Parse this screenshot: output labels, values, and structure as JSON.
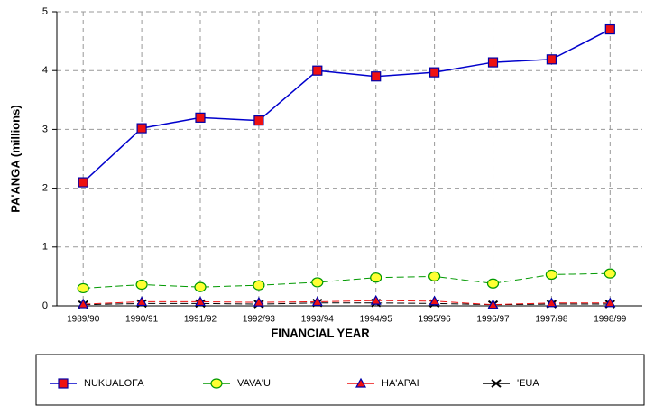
{
  "chart_data": {
    "type": "line",
    "y_label": "PA'ANGA (millions)",
    "x_label": "FINANCIAL YEAR",
    "categories": [
      "1989/90",
      "1990/91",
      "1991/92",
      "1992/93",
      "1993/94",
      "1994/95",
      "1995/96",
      "1996/97",
      "1997/98",
      "1998/99"
    ],
    "series": [
      {
        "name": "NUKUALOFA",
        "color": "#0000cc",
        "marker": "square",
        "marker_color": "#ee1111",
        "dash": false,
        "values": [
          2.1,
          3.02,
          3.2,
          3.15,
          4.0,
          3.9,
          3.97,
          4.14,
          4.19,
          4.7
        ]
      },
      {
        "name": "VAVA'U",
        "color": "#009900",
        "marker": "circle",
        "marker_color": "#ffff33",
        "dash": true,
        "values": [
          0.3,
          0.36,
          0.32,
          0.35,
          0.4,
          0.48,
          0.5,
          0.38,
          0.53,
          0.55
        ]
      },
      {
        "name": "HA'APAI",
        "color": "#ee1111",
        "marker": "triangle",
        "marker_color": "#ee1111",
        "dash": true,
        "values": [
          0.03,
          0.07,
          0.07,
          0.06,
          0.07,
          0.09,
          0.08,
          0.02,
          0.05,
          0.05
        ]
      },
      {
        "name": "'EUA",
        "color": "#000000",
        "marker": "x",
        "marker_color": "#000000",
        "dash": true,
        "values": [
          0.02,
          0.04,
          0.04,
          0.03,
          0.05,
          0.05,
          0.04,
          0.02,
          0.03,
          0.03
        ]
      }
    ],
    "ylim": [
      0,
      5
    ],
    "yticks": [
      0,
      1,
      2,
      3,
      4,
      5
    ],
    "grid": true
  }
}
